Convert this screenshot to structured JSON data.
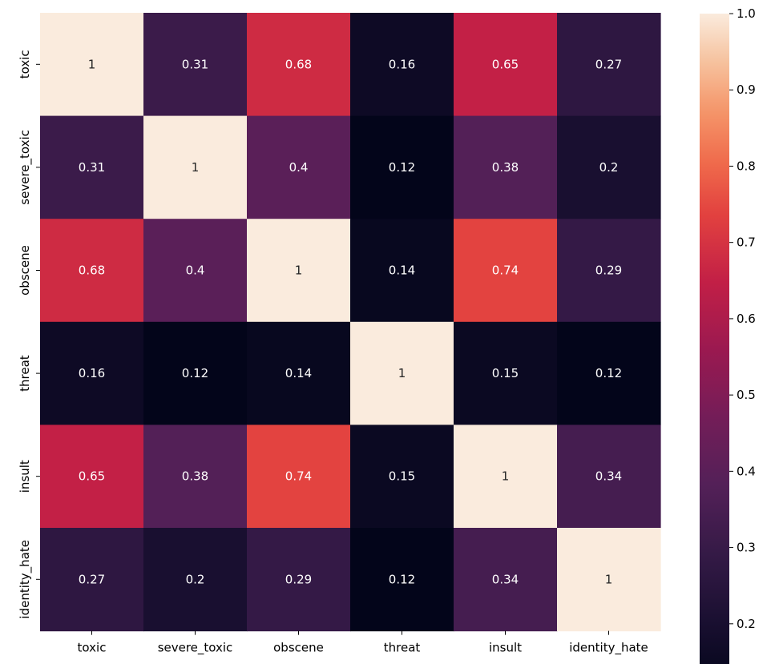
{
  "chart_data": {
    "type": "heatmap",
    "title": "",
    "xlabel": "",
    "ylabel": "",
    "x_categories": [
      "toxic",
      "severe_toxic",
      "obscene",
      "threat",
      "insult",
      "identity_hate"
    ],
    "y_categories": [
      "toxic",
      "severe_toxic",
      "obscene",
      "threat",
      "insult",
      "identity_hate"
    ],
    "values": [
      [
        1,
        0.31,
        0.68,
        0.16,
        0.65,
        0.27
      ],
      [
        0.31,
        1,
        0.4,
        0.12,
        0.38,
        0.2
      ],
      [
        0.68,
        0.4,
        1,
        0.14,
        0.74,
        0.29
      ],
      [
        0.16,
        0.12,
        0.14,
        1,
        0.15,
        0.12
      ],
      [
        0.65,
        0.38,
        0.74,
        0.15,
        1,
        0.34
      ],
      [
        0.27,
        0.2,
        0.29,
        0.12,
        0.34,
        1
      ]
    ],
    "annotations": [
      [
        "1",
        "0.31",
        "0.68",
        "0.16",
        "0.65",
        "0.27"
      ],
      [
        "0.31",
        "1",
        "0.4",
        "0.12",
        "0.38",
        "0.2"
      ],
      [
        "0.68",
        "0.4",
        "1",
        "0.14",
        "0.74",
        "0.29"
      ],
      [
        "0.16",
        "0.12",
        "0.14",
        "1",
        "0.15",
        "0.12"
      ],
      [
        "0.65",
        "0.38",
        "0.74",
        "0.15",
        "1",
        "0.34"
      ],
      [
        "0.27",
        "0.2",
        "0.29",
        "0.12",
        "0.34",
        "1"
      ]
    ],
    "colormap": "rocket",
    "colorbar": {
      "vmin": 0.12,
      "vmax": 1.0,
      "ticks": [
        0.2,
        0.3,
        0.4,
        0.5,
        0.6,
        0.7,
        0.8,
        0.9,
        1.0
      ],
      "tick_labels": [
        "0.2",
        "0.3",
        "0.4",
        "0.5",
        "0.6",
        "0.7",
        "0.8",
        "0.9",
        "1.0"
      ]
    },
    "grid": false
  }
}
